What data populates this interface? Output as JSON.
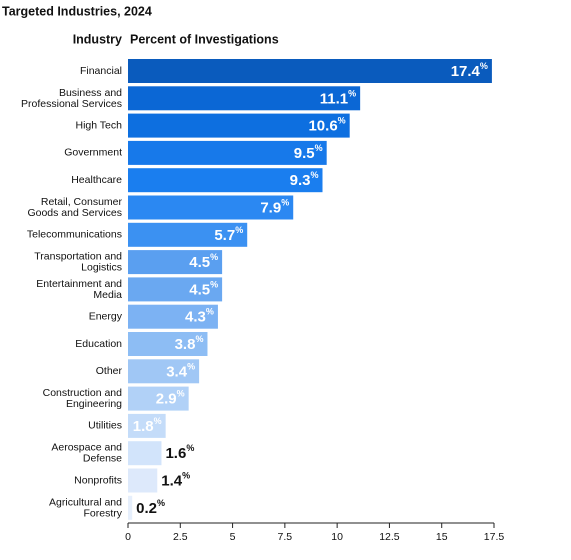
{
  "chart_data": {
    "type": "barh",
    "title": "Targeted Industries, 2024",
    "y_label": "Industry",
    "x_label": "Percent of Investigations",
    "categories": [
      "Financial",
      "Business and\nProfessional Services",
      "High Tech",
      "Government",
      "Healthcare",
      "Retail, Consumer\nGoods and Services",
      "Telecommunications",
      "Transportation and\nLogistics",
      "Entertainment and\nMedia",
      "Energy",
      "Education",
      "Other",
      "Construction and\nEngineering",
      "Utilities",
      "Aerospace and\nDefense",
      "Nonprofits",
      "Agricultural and\nForestry"
    ],
    "values": [
      17.4,
      11.1,
      10.6,
      9.5,
      9.3,
      7.9,
      5.7,
      4.5,
      4.5,
      4.3,
      3.8,
      3.4,
      2.9,
      1.8,
      1.6,
      1.4,
      0.2
    ],
    "value_labels": [
      "17.4%",
      "11.1%",
      "10.6%",
      "9.5%",
      "9.3%",
      "7.9%",
      "5.7%",
      "4.5%",
      "4.5%",
      "4.3%",
      "3.8%",
      "3.4%",
      "2.9%",
      "1.8%",
      "1.6%",
      "1.4%",
      "0.2%"
    ],
    "colors": [
      "#0a5bbd",
      "#0b67d5",
      "#0d6fe0",
      "#1779ea",
      "#1a7eef",
      "#2b88f2",
      "#3b91f2",
      "#5a9ff0",
      "#6aa8f1",
      "#7cb2f3",
      "#8dbdf4",
      "#a0c7f5",
      "#b1d1f7",
      "#c4dcf9",
      "#d2e4fb",
      "#dde9fb",
      "#e6effc"
    ],
    "xlim": [
      0,
      17.5
    ],
    "xticks": [
      0,
      2.5,
      5,
      7.5,
      10,
      12.5,
      15,
      17.5
    ]
  }
}
